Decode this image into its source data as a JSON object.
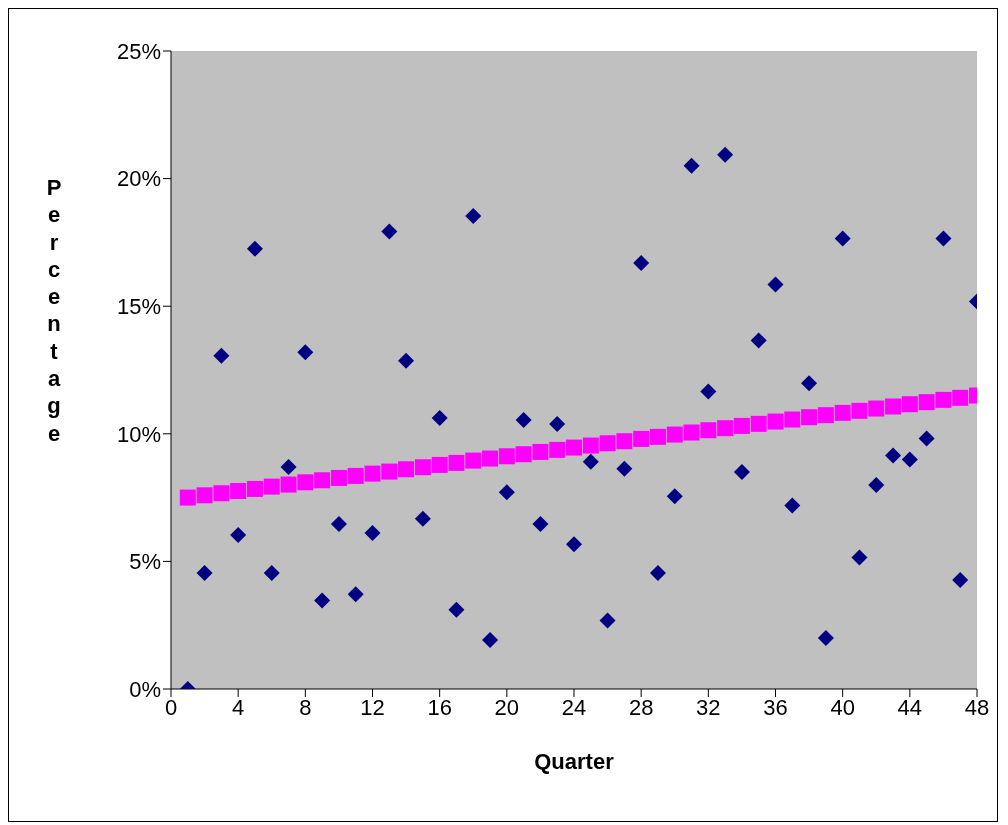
{
  "chart_data": {
    "type": "scatter",
    "xlabel": "Quarter",
    "ylabel": "Percentage",
    "xlim": [
      0,
      48
    ],
    "xticks": [
      0,
      4,
      8,
      12,
      16,
      20,
      24,
      28,
      32,
      36,
      40,
      44,
      48
    ],
    "ylim": [
      0,
      25
    ],
    "yticks": [
      {
        "value": 0,
        "label": "0%"
      },
      {
        "value": 5,
        "label": "5%"
      },
      {
        "value": 10,
        "label": "10%"
      },
      {
        "value": 15,
        "label": "15%"
      },
      {
        "value": 20,
        "label": "20%"
      },
      {
        "value": 25,
        "label": "25%"
      }
    ],
    "grid": false,
    "series": [
      {
        "marker": "diamond",
        "color": "#000080",
        "x": [
          1,
          2,
          3,
          4,
          5,
          6,
          7,
          8,
          9,
          10,
          11,
          12,
          13,
          14,
          15,
          16,
          17,
          18,
          19,
          20,
          21,
          22,
          23,
          24,
          25,
          26,
          27,
          28,
          29,
          30,
          31,
          32,
          33,
          34,
          35,
          36,
          37,
          38,
          39,
          40,
          41,
          42,
          43,
          44,
          45,
          46,
          47,
          48
        ],
        "values": [
          0,
          4.55,
          13.06,
          6.03,
          17.25,
          4.55,
          8.7,
          13.2,
          3.47,
          6.47,
          3.71,
          6.11,
          17.93,
          12.86,
          6.67,
          10.62,
          3.11,
          18.53,
          1.92,
          7.71,
          10.54,
          6.47,
          10.38,
          5.67,
          8.9,
          2.68,
          8.63,
          16.69,
          4.55,
          7.55,
          20.5,
          11.66,
          20.93,
          8.5,
          13.66,
          15.85,
          7.19,
          11.98,
          2.0,
          17.65,
          5.15,
          7.99,
          9.15,
          8.99,
          9.82,
          17.65,
          4.27,
          15.18
        ]
      },
      {
        "marker": "square",
        "color": "#ff00ff",
        "x": [
          1,
          2,
          3,
          4,
          5,
          6,
          7,
          8,
          9,
          10,
          11,
          12,
          13,
          14,
          15,
          16,
          17,
          18,
          19,
          20,
          21,
          22,
          23,
          24,
          25,
          26,
          27,
          28,
          29,
          30,
          31,
          32,
          33,
          34,
          35,
          36,
          37,
          38,
          39,
          40,
          41,
          42,
          43,
          44,
          45,
          46,
          47,
          48
        ],
        "values": [
          7.5,
          7.59,
          7.67,
          7.76,
          7.84,
          7.93,
          8.01,
          8.1,
          8.18,
          8.27,
          8.35,
          8.44,
          8.52,
          8.61,
          8.69,
          8.78,
          8.86,
          8.95,
          9.03,
          9.12,
          9.2,
          9.29,
          9.37,
          9.46,
          9.54,
          9.63,
          9.71,
          9.8,
          9.88,
          9.97,
          10.05,
          10.14,
          10.22,
          10.31,
          10.39,
          10.48,
          10.56,
          10.65,
          10.73,
          10.82,
          10.9,
          10.99,
          11.07,
          11.16,
          11.24,
          11.33,
          11.41,
          11.5
        ]
      }
    ]
  }
}
